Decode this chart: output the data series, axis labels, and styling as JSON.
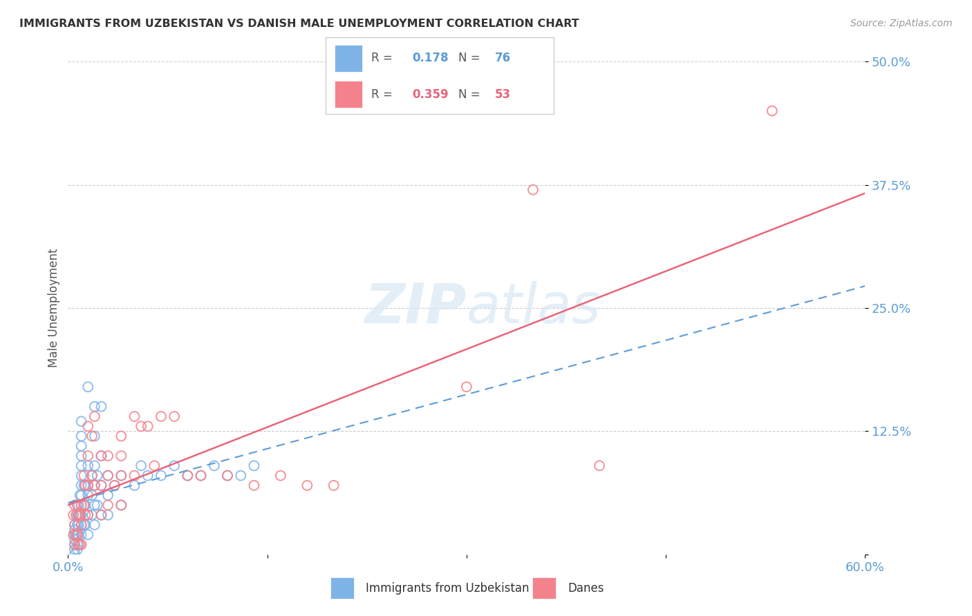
{
  "title": "IMMIGRANTS FROM UZBEKISTAN VS DANISH MALE UNEMPLOYMENT CORRELATION CHART",
  "source": "Source: ZipAtlas.com",
  "ylabel": "Male Unemployment",
  "xlim": [
    0.0,
    0.6
  ],
  "ylim": [
    0.0,
    0.5
  ],
  "yticks": [
    0.0,
    0.125,
    0.25,
    0.375,
    0.5
  ],
  "ytick_labels": [
    "",
    "12.5%",
    "25.0%",
    "37.5%",
    "50.0%"
  ],
  "xticks": [
    0.0,
    0.15,
    0.3,
    0.45,
    0.6
  ],
  "xtick_labels": [
    "0.0%",
    "",
    "",
    "",
    "60.0%"
  ],
  "blue_color": "#7EB3E8",
  "pink_color": "#F4828C",
  "blue_line_color": "#5B9BD5",
  "pink_line_color": "#E8647A",
  "blue_scatter_x": [
    0.005,
    0.005,
    0.005,
    0.005,
    0.005,
    0.005,
    0.005,
    0.007,
    0.007,
    0.007,
    0.007,
    0.007,
    0.008,
    0.008,
    0.008,
    0.008,
    0.009,
    0.009,
    0.01,
    0.01,
    0.01,
    0.01,
    0.01,
    0.01,
    0.01,
    0.012,
    0.012,
    0.012,
    0.013,
    0.013,
    0.013,
    0.015,
    0.015,
    0.015,
    0.015,
    0.015,
    0.018,
    0.018,
    0.018,
    0.02,
    0.02,
    0.02,
    0.02,
    0.022,
    0.022,
    0.025,
    0.025,
    0.025,
    0.03,
    0.03,
    0.03,
    0.035,
    0.04,
    0.04,
    0.05,
    0.055,
    0.06,
    0.07,
    0.08,
    0.09,
    0.1,
    0.11,
    0.12,
    0.13,
    0.14,
    0.02,
    0.025,
    0.015,
    0.02,
    0.01,
    0.01,
    0.01,
    0.01,
    0.01
  ],
  "blue_scatter_y": [
    0.03,
    0.025,
    0.02,
    0.015,
    0.01,
    0.005,
    0.0,
    0.04,
    0.03,
    0.02,
    0.01,
    0.005,
    0.05,
    0.04,
    0.03,
    0.02,
    0.06,
    0.04,
    0.08,
    0.07,
    0.06,
    0.05,
    0.04,
    0.03,
    0.02,
    0.07,
    0.05,
    0.03,
    0.07,
    0.05,
    0.03,
    0.09,
    0.07,
    0.06,
    0.04,
    0.02,
    0.08,
    0.06,
    0.04,
    0.09,
    0.07,
    0.05,
    0.03,
    0.08,
    0.05,
    0.1,
    0.07,
    0.04,
    0.08,
    0.06,
    0.04,
    0.07,
    0.08,
    0.05,
    0.07,
    0.09,
    0.08,
    0.08,
    0.09,
    0.08,
    0.08,
    0.09,
    0.08,
    0.08,
    0.09,
    0.15,
    0.15,
    0.17,
    0.12,
    0.12,
    0.1,
    0.135,
    0.11,
    0.09
  ],
  "pink_scatter_x": [
    0.004,
    0.004,
    0.005,
    0.005,
    0.005,
    0.006,
    0.006,
    0.007,
    0.007,
    0.008,
    0.008,
    0.009,
    0.009,
    0.01,
    0.01,
    0.01,
    0.012,
    0.012,
    0.013,
    0.013,
    0.015,
    0.015,
    0.015,
    0.015,
    0.018,
    0.018,
    0.02,
    0.02,
    0.025,
    0.025,
    0.025,
    0.03,
    0.03,
    0.03,
    0.035,
    0.04,
    0.04,
    0.04,
    0.04,
    0.05,
    0.05,
    0.055,
    0.06,
    0.065,
    0.07,
    0.08,
    0.09,
    0.1,
    0.12,
    0.14,
    0.16,
    0.18,
    0.2,
    0.3,
    0.35,
    0.4,
    0.53
  ],
  "pink_scatter_y": [
    0.04,
    0.02,
    0.05,
    0.03,
    0.01,
    0.04,
    0.02,
    0.05,
    0.02,
    0.04,
    0.01,
    0.04,
    0.01,
    0.05,
    0.03,
    0.01,
    0.08,
    0.05,
    0.07,
    0.04,
    0.13,
    0.1,
    0.07,
    0.04,
    0.12,
    0.08,
    0.14,
    0.07,
    0.1,
    0.07,
    0.04,
    0.1,
    0.08,
    0.05,
    0.07,
    0.12,
    0.1,
    0.08,
    0.05,
    0.14,
    0.08,
    0.13,
    0.13,
    0.09,
    0.14,
    0.14,
    0.08,
    0.08,
    0.08,
    0.07,
    0.08,
    0.07,
    0.07,
    0.17,
    0.37,
    0.09,
    0.45
  ]
}
